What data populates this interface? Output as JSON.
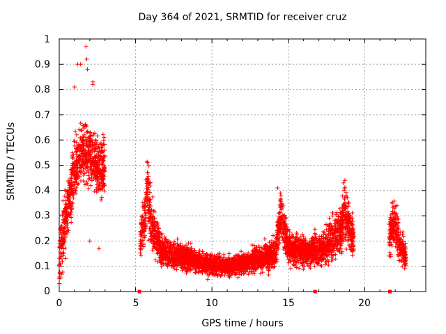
{
  "chart_data": {
    "type": "scatter",
    "title": "Day 364 of 2021, SRMTID for receiver cruz",
    "xlabel": "GPS time / hours",
    "ylabel": "SRMTID / TECUs",
    "xlim": [
      0,
      24
    ],
    "ylim": [
      0,
      1
    ],
    "xticks": [
      "0",
      "5",
      "10",
      "15",
      "20"
    ],
    "yticks": [
      "0",
      "0.1",
      "0.2",
      "0.3",
      "0.4",
      "0.5",
      "0.6",
      "0.7",
      "0.8",
      "0.9",
      "1"
    ],
    "grid": true,
    "marker": "+",
    "color": "#ff0000",
    "gap_markers_x": [
      5.25,
      16.75,
      21.65
    ],
    "series": [
      {
        "name": "SRMTID",
        "segments": [
          {
            "x_start": 0.0,
            "x_end": 3.0,
            "baseline": 0.4,
            "spread": 0.2,
            "trend_x": [
              0.0,
              0.5,
              1.0,
              1.5,
              2.0,
              2.5,
              3.0
            ],
            "trend_y": [
              0.14,
              0.3,
              0.48,
              0.55,
              0.55,
              0.5,
              0.48
            ]
          },
          {
            "x_start": 5.3,
            "x_end": 6.6,
            "trend_x": [
              5.3,
              5.6,
              5.8,
              6.0,
              6.3,
              6.6
            ],
            "trend_y": [
              0.2,
              0.3,
              0.42,
              0.28,
              0.22,
              0.2
            ]
          },
          {
            "x_start": 6.6,
            "x_end": 14.2,
            "trend_x": [
              6.6,
              8.0,
              9.5,
              11.0,
              12.5,
              14.2
            ],
            "trend_y": [
              0.16,
              0.14,
              0.11,
              0.1,
              0.12,
              0.15
            ]
          },
          {
            "x_start": 14.2,
            "x_end": 19.3,
            "trend_x": [
              14.2,
              14.5,
              15.0,
              16.5,
              17.5,
              18.5,
              18.7,
              19.3
            ],
            "trend_y": [
              0.18,
              0.3,
              0.17,
              0.16,
              0.18,
              0.25,
              0.32,
              0.2
            ]
          },
          {
            "x_start": 21.6,
            "x_end": 22.7,
            "trend_x": [
              21.6,
              22.0,
              22.3,
              22.7
            ],
            "trend_y": [
              0.22,
              0.27,
              0.18,
              0.14
            ]
          }
        ],
        "highlights": [
          {
            "x": 1.75,
            "y": 0.97
          },
          {
            "x": 1.8,
            "y": 0.92
          },
          {
            "x": 1.2,
            "y": 0.9
          },
          {
            "x": 1.4,
            "y": 0.9
          },
          {
            "x": 1.85,
            "y": 0.88
          },
          {
            "x": 2.2,
            "y": 0.83
          },
          {
            "x": 2.2,
            "y": 0.82
          },
          {
            "x": 1.0,
            "y": 0.81
          },
          {
            "x": 18.6,
            "y": 0.43
          },
          {
            "x": 18.7,
            "y": 0.44
          },
          {
            "x": 14.3,
            "y": 0.41
          },
          {
            "x": 5.8,
            "y": 0.47
          },
          {
            "x": 21.8,
            "y": 0.35
          },
          {
            "x": 2.0,
            "y": 0.2
          },
          {
            "x": 2.6,
            "y": 0.17
          }
        ]
      }
    ]
  }
}
